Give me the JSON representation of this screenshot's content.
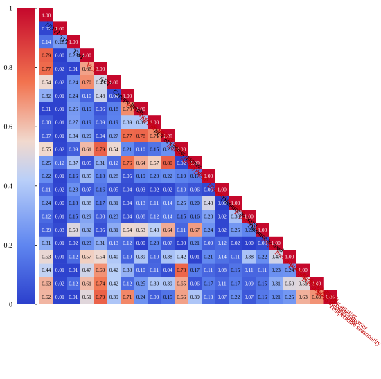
{
  "chart_data": {
    "type": "heatmap",
    "variables": [
      "NDVI",
      "TPI",
      "TWI",
      "VCF",
      "AET",
      "Canopy height",
      "PET of coldest quarter",
      "PET of driest quarter",
      "PET of wettest quarter",
      "Annual PET",
      "Aridity index",
      "DEM",
      "Distance to urban",
      "Distance to water",
      "Population",
      "Distance to road",
      "Slope",
      "Precipitation of wettest month",
      "Precipitation of warmest quarter",
      "Precipitation of coldest quarter",
      "Mean diurnal range",
      "Temperature seasonality"
    ],
    "label_colors": [
      "#000000",
      "#000000",
      "#000000",
      "#c00000",
      "#000000",
      "#000000",
      "#c00000",
      "#c00000",
      "#000000",
      "#c00000",
      "#c00000",
      "#c00000",
      "#c00000",
      "#000000",
      "#c00000",
      "#000000",
      "#c00000",
      "#c00000",
      "#c00000",
      "#c00000",
      "#c00000",
      "#c00000"
    ],
    "rows": [
      [
        "1.00"
      ],
      [
        "0.02",
        "1.00"
      ],
      [
        "0.14",
        "0.26",
        "1.00"
      ],
      [
        "0.79",
        "0.00",
        "0.26",
        "1.00"
      ],
      [
        "0.77",
        "0.02",
        "0.01",
        "0.66",
        "1.00"
      ],
      [
        "0.54",
        "0.02",
        "0.24",
        "0.70",
        "0.48",
        "1.00"
      ],
      [
        "0.32",
        "0.01",
        "0.24",
        "0.10",
        "0.46",
        "0.04",
        "1.00"
      ],
      [
        "0.01",
        "0.01",
        "0.26",
        "0.19",
        "0.06",
        "0.18",
        "0.70",
        "1.00"
      ],
      [
        "0.08",
        "0.01",
        "0.27",
        "0.19",
        "0.09",
        "0.19",
        "0.39",
        "0.39",
        "1.00"
      ],
      [
        "0.07",
        "0.01",
        "0.34",
        "0.29",
        "0.04",
        "0.27",
        "0.77",
        "0.78",
        "0.71",
        "1.00"
      ],
      [
        "0.55",
        "0.02",
        "0.09",
        "0.61",
        "0.79",
        "0.54",
        "0.21",
        "0.10",
        "0.15",
        "0.23",
        "1.00"
      ],
      [
        "0.25",
        "0.12",
        "0.37",
        "0.05",
        "0.31",
        "0.12",
        "0.76",
        "0.64",
        "0.57",
        "0.80",
        "0.02",
        "1.00"
      ],
      [
        "0.22",
        "0.01",
        "0.16",
        "0.35",
        "0.18",
        "0.28",
        "0.05",
        "0.19",
        "0.20",
        "0.22",
        "0.19",
        "0.17",
        "1.00"
      ],
      [
        "0.11",
        "0.02",
        "0.23",
        "0.07",
        "0.16",
        "0.05",
        "0.04",
        "0.03",
        "0.02",
        "0.02",
        "0.10",
        "0.06",
        "0.03",
        "1.00"
      ],
      [
        "0.24",
        "0.00",
        "0.18",
        "0.38",
        "0.17",
        "0.31",
        "0.04",
        "0.13",
        "0.11",
        "0.14",
        "0.25",
        "0.20",
        "0.48",
        "0.00",
        "1.00"
      ],
      [
        "0.12",
        "0.01",
        "0.15",
        "0.29",
        "0.08",
        "0.23",
        "0.04",
        "0.08",
        "0.12",
        "0.14",
        "0.15",
        "0.16",
        "0.28",
        "0.02",
        "0.38",
        "1.00"
      ],
      [
        "0.09",
        "0.03",
        "0.50",
        "0.32",
        "0.05",
        "0.31",
        "0.54",
        "0.53",
        "0.43",
        "0.64",
        "0.11",
        "0.67",
        "0.24",
        "0.02",
        "0.25",
        "0.20",
        "1.00"
      ],
      [
        "0.31",
        "0.01",
        "0.02",
        "0.23",
        "0.31",
        "0.13",
        "0.12",
        "0.00",
        "0.20",
        "0.07",
        "0.00",
        "0.21",
        "0.09",
        "0.12",
        "0.02",
        "0.00",
        "0.03",
        "1.00"
      ],
      [
        "0.53",
        "0.01",
        "0.12",
        "0.57",
        "0.54",
        "0.40",
        "0.10",
        "0.39",
        "0.10",
        "0.38",
        "0.42",
        "0.01",
        "0.21",
        "0.14",
        "0.11",
        "0.38",
        "0.22",
        "0.47",
        "1.00"
      ],
      [
        "0.44",
        "0.01",
        "0.01",
        "0.47",
        "0.69",
        "0.42",
        "0.33",
        "0.10",
        "0.11",
        "0.04",
        "0.78",
        "0.17",
        "0.11",
        "0.08",
        "0.15",
        "0.11",
        "0.11",
        "0.23",
        "0.24",
        "1.00"
      ],
      [
        "0.63",
        "0.02",
        "0.12",
        "0.61",
        "0.74",
        "0.42",
        "0.12",
        "0.25",
        "0.39",
        "0.39",
        "0.65",
        "0.06",
        "0.17",
        "0.11",
        "0.17",
        "0.09",
        "0.15",
        "0.31",
        "0.50",
        "0.51",
        "1.00"
      ],
      [
        "0.62",
        "0.01",
        "0.01",
        "0.51",
        "0.79",
        "0.39",
        "0.71",
        "0.24",
        "0.09",
        "0.15",
        "0.66",
        "0.39",
        "0.13",
        "0.07",
        "0.22",
        "0.07",
        "0.16",
        "0.21",
        "0.25",
        "0.63",
        "0.69",
        "1.00"
      ]
    ],
    "colorbar": {
      "ticks": [
        "0",
        "0.2",
        "0.4",
        "0.6",
        "0.8",
        "1"
      ],
      "range": [
        0,
        1
      ],
      "colormap": [
        "#2b3fcc",
        "#5f86f0",
        "#b9cff8",
        "#f1d9ce",
        "#f2734f",
        "#c5082c"
      ]
    }
  }
}
